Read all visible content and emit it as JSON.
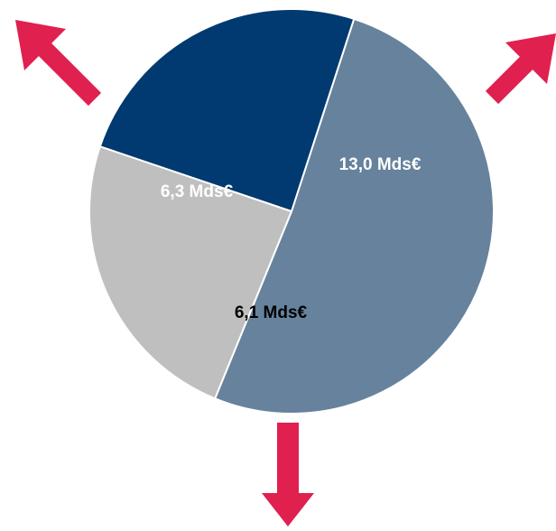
{
  "chart_data": {
    "type": "pie",
    "slices": [
      {
        "label": "13,0 Mds€",
        "value": 13.0,
        "color": "#66829D",
        "label_color": "#FFFFFF"
      },
      {
        "label": "6,1 Mds€",
        "value": 6.1,
        "color": "#BFBFBF",
        "label_color": "#000000"
      },
      {
        "label": "6,3 Mds€",
        "value": 6.3,
        "color": "#003A70",
        "label_color": "#FFFFFF"
      }
    ],
    "slice_border_color": "#FFFFFF"
  },
  "decorations": {
    "arrow_color": "#E0204F",
    "arrows": [
      {
        "name": "arrow-up-left-icon",
        "direction": "up-left"
      },
      {
        "name": "arrow-up-right-icon",
        "direction": "up-right"
      },
      {
        "name": "arrow-down-icon",
        "direction": "down"
      }
    ]
  }
}
